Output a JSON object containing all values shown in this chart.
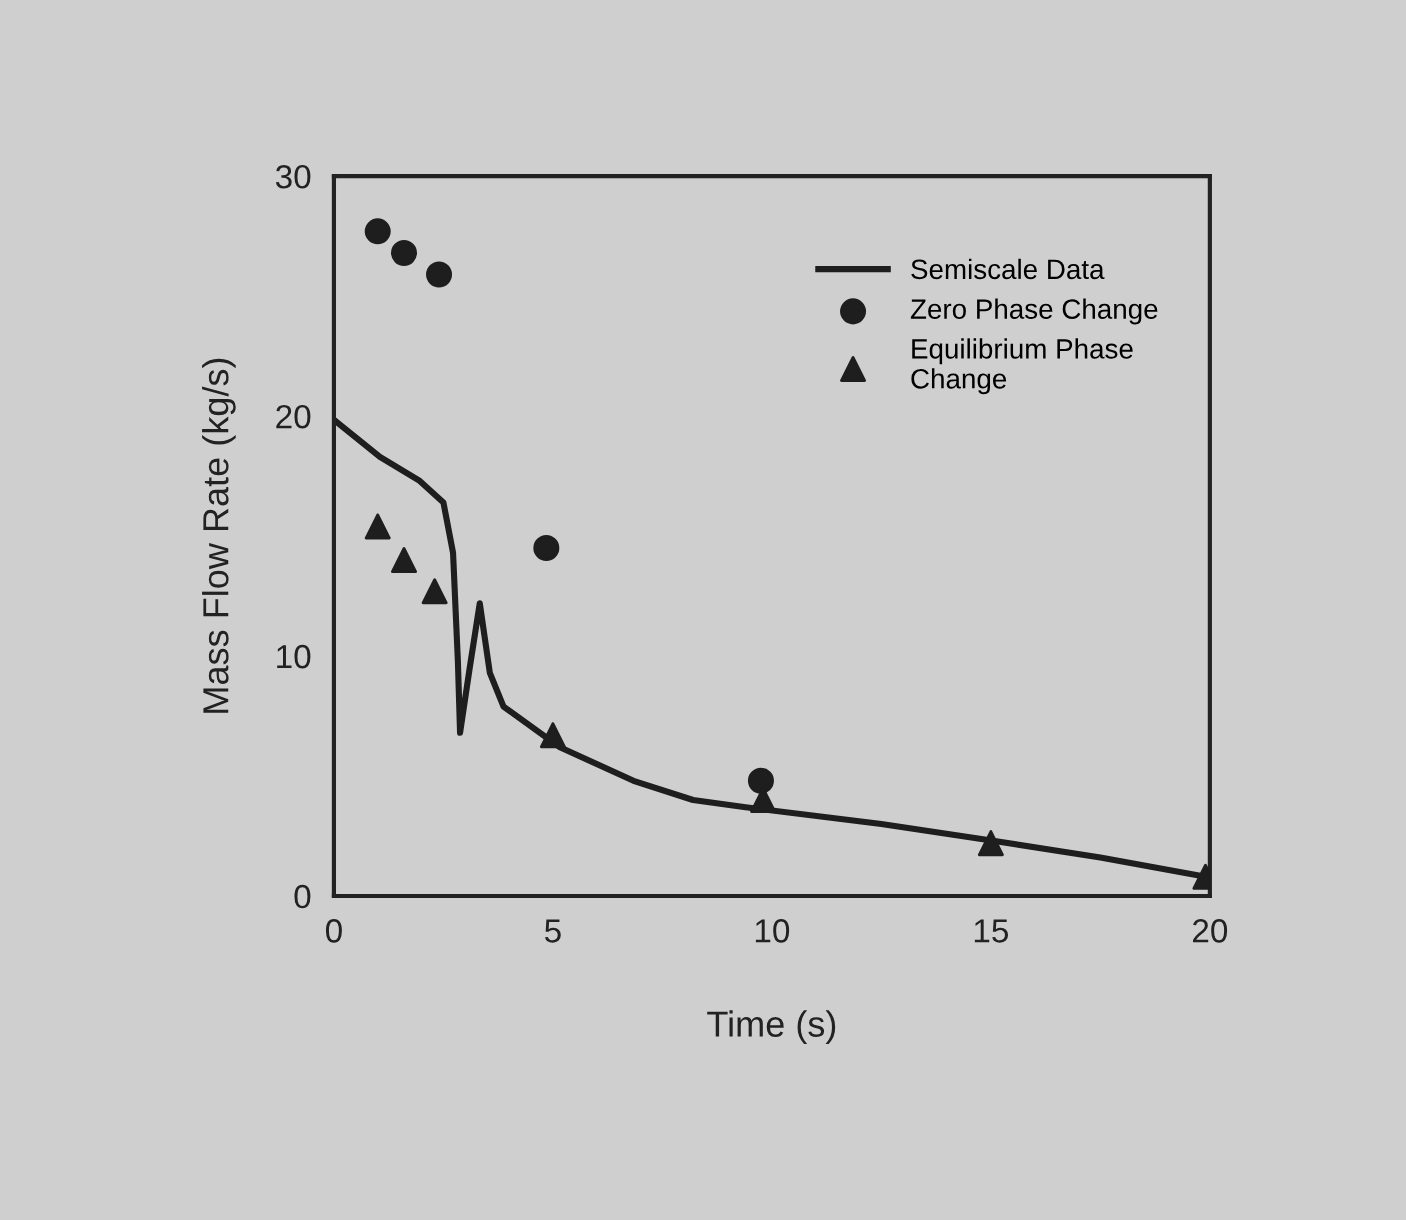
{
  "chart_data": {
    "type": "line",
    "xlabel": "Time (s)",
    "ylabel": "Mass Flow Rate (kg/s)",
    "xlim": [
      0,
      20
    ],
    "ylim": [
      0,
      30
    ],
    "xticks": [
      0,
      5,
      10,
      15,
      20
    ],
    "yticks": [
      0,
      10,
      20,
      30
    ],
    "grid": false,
    "legend": "top right",
    "series": [
      {
        "name": "Semiscale Data",
        "color": "#1e1e1e",
        "marker": "none",
        "line_style": "solid",
        "x": [
          0.03,
          1.05,
          1.96,
          2.5,
          2.72,
          2.83,
          2.88,
          3.1,
          3.33,
          3.56,
          3.87,
          5.16,
          6.84,
          8.2,
          9.4,
          12.5,
          15.05,
          17.5,
          19.9
        ],
        "values": [
          19.8,
          18.3,
          17.3,
          16.4,
          14.3,
          9.8,
          6.8,
          9.5,
          12.2,
          9.3,
          7.9,
          6.2,
          4.8,
          4.0,
          3.7,
          3.0,
          2.3,
          1.6,
          0.8
        ]
      },
      {
        "name": "Zero Phase Change",
        "type": "scatter",
        "color": "#1e1e1e",
        "marker": "circle",
        "x": [
          1,
          1.6,
          2.4,
          4.85,
          9.75
        ],
        "values": [
          27.7,
          26.8,
          25.9,
          14.5,
          4.8
        ]
      },
      {
        "name": "Equilibrium Phase Change",
        "type": "scatter",
        "color": "#1e1e1e",
        "marker": "triangle",
        "x": [
          1,
          1.6,
          2.3,
          5,
          9.8,
          15,
          19.9
        ],
        "values": [
          15.4,
          14.0,
          12.7,
          6.7,
          4.0,
          2.2,
          0.8
        ]
      }
    ]
  }
}
